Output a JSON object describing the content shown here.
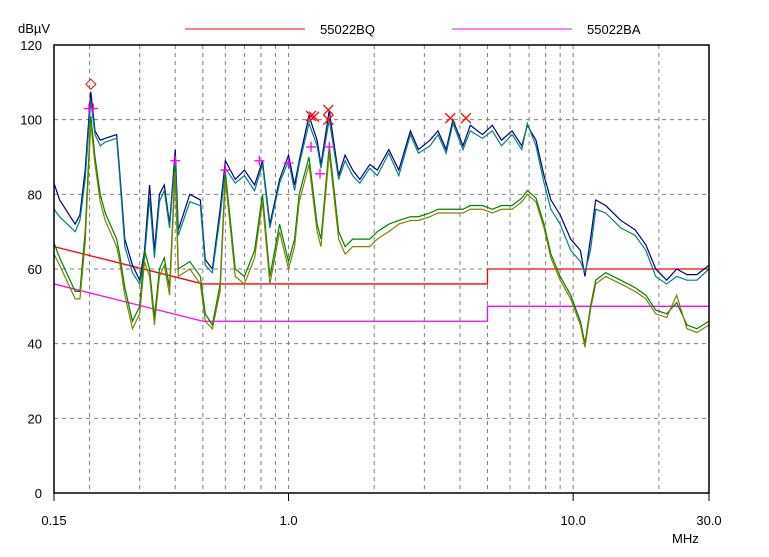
{
  "chart_data": {
    "type": "line",
    "ylabel": "dBµV",
    "xlabel": "MHz",
    "xscale": "log",
    "xlim": [
      0.15,
      30.0
    ],
    "ylim": [
      0,
      120
    ],
    "yticks": [
      0,
      20,
      40,
      60,
      80,
      100,
      120
    ],
    "xtick_labels": [
      {
        "value": 0.15,
        "label": "0.15"
      },
      {
        "value": 1.0,
        "label": "1.0"
      },
      {
        "value": 10.0,
        "label": "10.0"
      },
      {
        "value": 30.0,
        "label": "30.0"
      }
    ],
    "grid": true,
    "legend": [
      {
        "label": "55022BQ",
        "color": "#ff0000"
      },
      {
        "label": "55022BA",
        "color": "#ff00ff"
      }
    ],
    "limits": [
      {
        "name": "55022BQ",
        "color": "#ff0000",
        "points": [
          [
            0.15,
            66
          ],
          [
            0.5,
            56
          ],
          [
            5.0,
            56
          ],
          [
            5.0,
            60
          ],
          [
            30.0,
            60
          ]
        ]
      },
      {
        "name": "55022BA",
        "color": "#ff00ff",
        "points": [
          [
            0.15,
            56
          ],
          [
            0.5,
            46
          ],
          [
            5.0,
            46
          ],
          [
            5.0,
            50
          ],
          [
            30.0,
            50
          ]
        ]
      }
    ],
    "x": [
      0.15,
      0.157,
      0.178,
      0.185,
      0.193,
      0.202,
      0.209,
      0.218,
      0.227,
      0.249,
      0.255,
      0.266,
      0.283,
      0.3,
      0.312,
      0.325,
      0.338,
      0.352,
      0.366,
      0.382,
      0.4,
      0.41,
      0.45,
      0.49,
      0.51,
      0.54,
      0.575,
      0.6,
      0.65,
      0.7,
      0.76,
      0.81,
      0.86,
      0.93,
      1.0,
      1.05,
      1.09,
      1.18,
      1.26,
      1.3,
      1.39,
      1.5,
      1.58,
      1.68,
      1.78,
      1.93,
      2.05,
      2.25,
      2.44,
      2.68,
      2.86,
      3.14,
      3.35,
      3.58,
      3.78,
      4.1,
      4.35,
      4.8,
      5.2,
      5.6,
      6.1,
      6.6,
      6.9,
      7.4,
      7.9,
      8.35,
      9.0,
      9.8,
      10.6,
      11.0,
      11.5,
      12.0,
      13.0,
      14.7,
      16.5,
      18.0,
      19.5,
      21.3,
      23.1,
      25.1,
      27.2,
      30.0
    ],
    "series": [
      {
        "color": "#000080",
        "values": [
          83,
          78.5,
          72,
          74.5,
          86.5,
          107.5,
          97,
          94.5,
          95,
          96,
          86.5,
          68,
          61,
          57,
          65,
          82.5,
          65,
          80,
          82.5,
          72,
          92,
          70.5,
          80,
          78.5,
          62.5,
          60,
          76,
          89,
          84,
          86.5,
          82.5,
          89,
          72,
          84,
          90.5,
          82.5,
          89,
          101,
          94.5,
          88,
          102.5,
          85,
          90.5,
          86.5,
          84,
          88,
          86.5,
          92,
          86.5,
          97,
          92,
          94.5,
          97,
          92,
          100,
          93,
          98.5,
          96,
          98.5,
          94.5,
          97,
          93,
          98.5,
          94.5,
          85,
          78.5,
          74.5,
          68,
          65,
          58,
          68,
          78.5,
          77,
          73,
          70.5,
          66.5,
          60,
          57,
          60,
          58.5,
          58.5,
          61
        ]
      },
      {
        "color": "#008080",
        "values": [
          76,
          74,
          70,
          73,
          84,
          105,
          96,
          93,
          94,
          95,
          85,
          66,
          59,
          56,
          63,
          79,
          63,
          78,
          81,
          71,
          90,
          69,
          78,
          77,
          61,
          59,
          74,
          87,
          83,
          85,
          81,
          88,
          71,
          83,
          89,
          81,
          88,
          99,
          93,
          87,
          100,
          84,
          89,
          85,
          83,
          87,
          85,
          91,
          85,
          96,
          91,
          93,
          96,
          91,
          99,
          92,
          97,
          95,
          97,
          93,
          96,
          92,
          99,
          93,
          83,
          76,
          72,
          65,
          62,
          59,
          65,
          76,
          75,
          71,
          69,
          65,
          58,
          56,
          58,
          57,
          57,
          60
        ]
      },
      {
        "color": "#008000",
        "values": [
          67,
          63,
          54,
          54,
          70,
          101,
          90,
          80,
          75,
          68,
          64,
          55,
          46,
          50,
          65,
          60,
          47,
          60,
          63,
          55,
          88,
          60,
          62,
          58,
          48,
          45,
          56,
          86,
          60,
          58,
          65,
          80,
          58,
          72,
          62,
          68,
          80,
          90,
          72,
          68,
          93,
          70,
          66,
          68,
          68,
          68,
          70,
          72,
          73,
          74,
          74,
          75,
          76,
          76,
          76,
          76,
          77,
          77,
          76,
          77,
          77,
          79,
          81,
          79,
          72,
          64,
          58,
          53,
          46,
          40,
          50,
          57,
          59,
          57,
          55,
          53,
          49,
          48,
          51,
          45,
          44,
          46
        ]
      },
      {
        "color": "#808000",
        "values": [
          64,
          61,
          52,
          52,
          67,
          99,
          88,
          78,
          73,
          66,
          62,
          53,
          44,
          48,
          62,
          58,
          45,
          58,
          61,
          53,
          86,
          58,
          60,
          56,
          46,
          44,
          54,
          84,
          58,
          56,
          63,
          78,
          56,
          70,
          60,
          66,
          78,
          88,
          70,
          66,
          91,
          68,
          64,
          66,
          66,
          66,
          68,
          70,
          72,
          73,
          73,
          74,
          75,
          75,
          75,
          75,
          76,
          76,
          75,
          76,
          76,
          78,
          80,
          78,
          71,
          63,
          57,
          52,
          45,
          39,
          49,
          56,
          58,
          56,
          54,
          52,
          48,
          47,
          53,
          44,
          43,
          45
        ]
      }
    ],
    "markers": [
      {
        "shape": "diamond",
        "color": "#ff0000",
        "points": [
          [
            0.202,
            109.5
          ]
        ]
      },
      {
        "shape": "plus",
        "color": "#ff00ff",
        "points": [
          [
            0.199,
            103
          ],
          [
            0.206,
            103
          ],
          [
            0.4,
            89
          ],
          [
            0.6,
            86.5
          ],
          [
            0.79,
            89
          ],
          [
            1.0,
            88.4
          ],
          [
            1.2,
            92.7
          ],
          [
            1.29,
            85.5
          ],
          [
            1.39,
            92.7
          ]
        ]
      },
      {
        "shape": "cross",
        "color": "#ff0000",
        "points": [
          [
            1.2,
            101
          ],
          [
            1.23,
            100.8
          ],
          [
            1.38,
            102.6
          ],
          [
            1.38,
            100
          ],
          [
            3.7,
            100.4
          ],
          [
            4.2,
            100.4
          ]
        ]
      }
    ]
  }
}
